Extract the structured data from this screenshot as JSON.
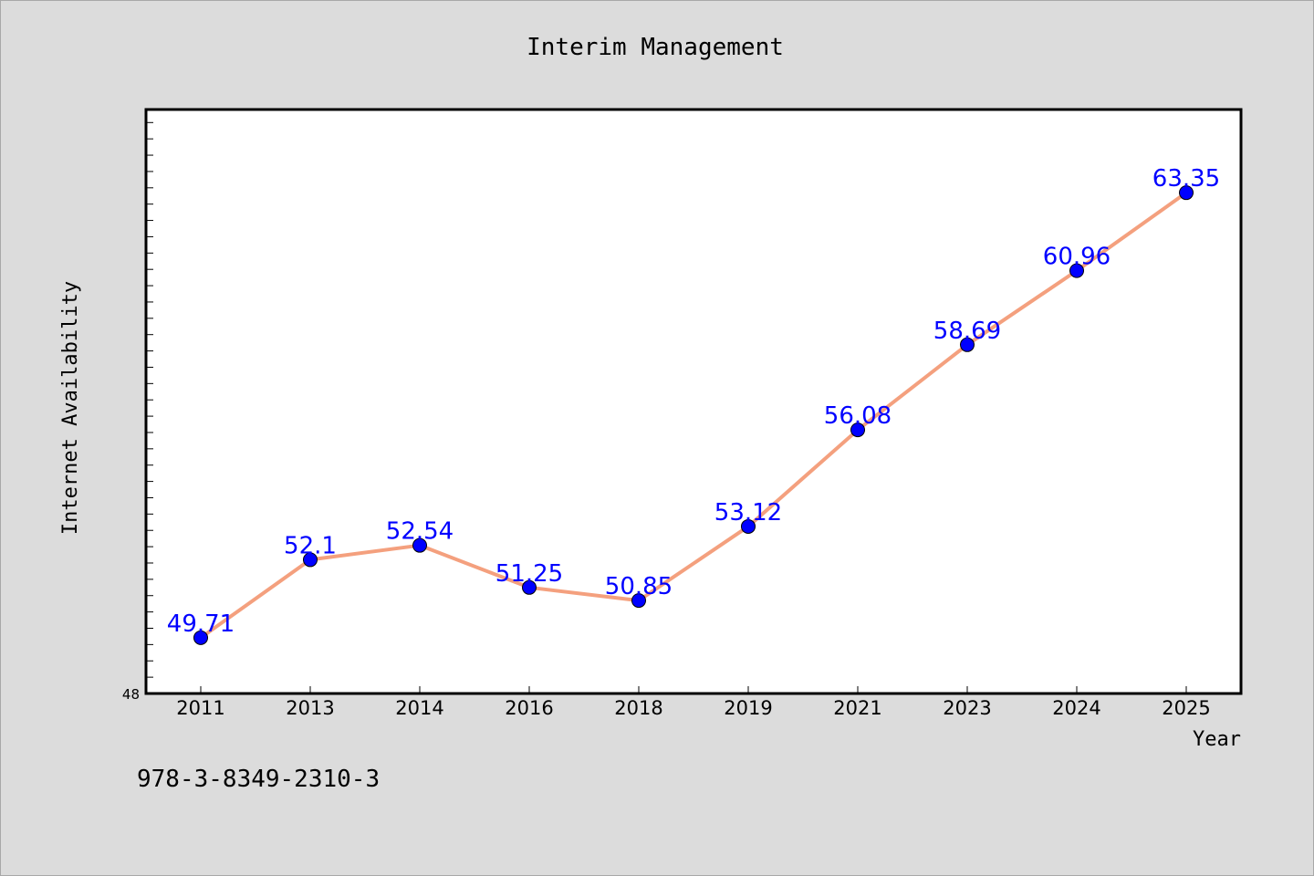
{
  "chart_data": {
    "type": "line",
    "title": "Interim Management",
    "xlabel": "Year",
    "ylabel": "Internet Availability",
    "categories": [
      "2011",
      "2013",
      "2014",
      "2016",
      "2018",
      "2019",
      "2021",
      "2023",
      "2024",
      "2025"
    ],
    "series": [
      {
        "values": [
          49.71,
          52.1,
          52.54,
          51.25,
          50.85,
          53.12,
          56.08,
          58.69,
          60.96,
          63.35
        ],
        "value_labels": [
          "49.71",
          "52.1",
          "52.54",
          "51.25",
          "50.85",
          "53.12",
          "56.08",
          "58.69",
          "60.96",
          "63.35"
        ],
        "color": "#f4a07e",
        "marker_color": "#0000ff"
      }
    ],
    "ylim": [
      48,
      65.9
    ],
    "y_min_tick_label": "48",
    "grid": false,
    "legend": "none"
  },
  "footer": {
    "isbn": "978-3-8349-2310-3"
  },
  "colors": {
    "background": "#dcdcdc",
    "plot_background": "#ffffff",
    "line": "#f4a07e",
    "marker": "#0000ff",
    "data_label": "#0000ff"
  }
}
